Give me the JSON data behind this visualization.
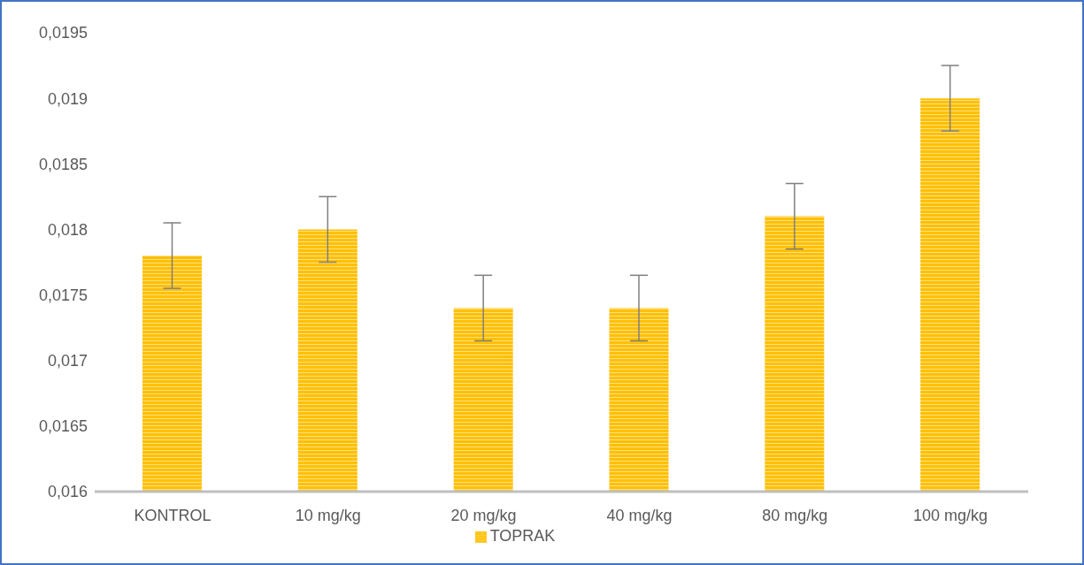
{
  "chart_data": {
    "type": "bar",
    "categories": [
      "KONTROL",
      "10 mg/kg",
      "20 mg/kg",
      "40 mg/kg",
      "80 mg/kg",
      "100 mg/kg"
    ],
    "series": [
      {
        "name": "TOPRAK",
        "color": "#ffc000",
        "values": [
          0.0178,
          0.018,
          0.0174,
          0.0174,
          0.0181,
          0.019
        ],
        "errors": [
          0.00025,
          0.00025,
          0.00025,
          0.00025,
          0.00025,
          0.00025
        ]
      }
    ],
    "ylim": [
      0.016,
      0.0195
    ],
    "yticks": [
      {
        "value": 0.016,
        "label": "0,016"
      },
      {
        "value": 0.0165,
        "label": "0,0165"
      },
      {
        "value": 0.017,
        "label": "0,017"
      },
      {
        "value": 0.0175,
        "label": "0,0175"
      },
      {
        "value": 0.018,
        "label": "0,018"
      },
      {
        "value": 0.0185,
        "label": "0,0185"
      },
      {
        "value": 0.019,
        "label": "0,019"
      },
      {
        "value": 0.0195,
        "label": "0,0195"
      }
    ],
    "grid": false,
    "legend": "bottom"
  }
}
